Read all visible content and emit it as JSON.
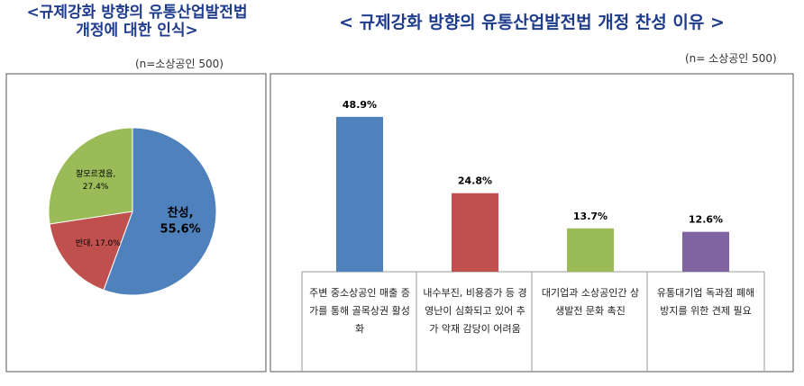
{
  "chart_data": [
    {
      "type": "pie",
      "title": "<규제강화 방향의 유통산업발전법\n개정에 대한 인식>",
      "subtitle": "(n=소상공인 500)",
      "categories": [
        "찬성,",
        "반대,",
        "잘모르겠음,"
      ],
      "values": [
        55.6,
        17.0,
        27.4
      ],
      "value_labels": [
        "55.6%",
        "17.0%",
        "27.4%"
      ],
      "colors": [
        "#4f81bd",
        "#c0504d",
        "#9bbb59"
      ]
    },
    {
      "type": "bar",
      "title": "< 규제강화 방향의 유통산업발전법 개정 찬성 이유 >",
      "subtitle": "(n= 소상공인 500)",
      "categories": [
        "주변 중소상공인 매출 증가를 통해 골목상권 활성화",
        "내수부진, 비용증가 등 경영난이 심화되고 있어 추가 악재 감당이 어려움",
        "대기업과 소상공인간 상생발전 문화 촉진",
        "유통대기업 독과점 폐해 방지를 위한 견제 필요"
      ],
      "values": [
        48.9,
        24.8,
        13.7,
        12.6
      ],
      "value_labels": [
        "48.9%",
        "24.8%",
        "13.7%",
        "12.6%"
      ],
      "colors": [
        "#4f81bd",
        "#c0504d",
        "#9bbb59",
        "#8064a2"
      ]
    }
  ]
}
